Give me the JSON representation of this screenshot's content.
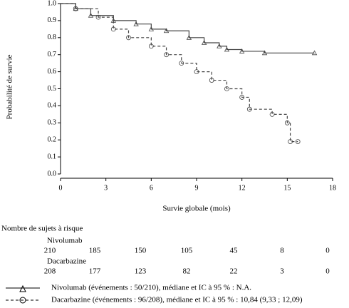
{
  "chart_data": {
    "type": "step",
    "x_label": "Survie globale (mois)",
    "y_label": "Probabilité de survie",
    "xlim": [
      0,
      18
    ],
    "xticks": [
      0,
      3,
      6,
      9,
      12,
      15,
      18
    ],
    "ylim": [
      0,
      1
    ],
    "yticks": [
      {
        "value": 0,
        "label": "0.0"
      },
      {
        "value": 0.1,
        "label": "0.1"
      },
      {
        "value": 0.2,
        "label": "0.2"
      },
      {
        "value": 0.3,
        "label": "0.3"
      },
      {
        "value": 0.4,
        "label": "0.4"
      },
      {
        "value": 0.5,
        "label": "0.5"
      },
      {
        "value": 0.6,
        "label": "0.6"
      },
      {
        "value": 0.7,
        "label": "0.7"
      },
      {
        "value": 0.8,
        "label": "0.8"
      },
      {
        "value": 0.9,
        "label": "0.9"
      },
      {
        "value": 1,
        "label": "1.0"
      }
    ],
    "series": [
      {
        "name": "Nivolumab (événements : 50/210), médiane et IC à 95 % : N.A.",
        "color": "#444444",
        "x": [
          0,
          1,
          2,
          3.5,
          5,
          6,
          7,
          8.5,
          9.5,
          10.5,
          11,
          12,
          13.5,
          16.8
        ],
        "values": [
          1,
          0.97,
          0.93,
          0.9,
          0.88,
          0.85,
          0.84,
          0.8,
          0.77,
          0.75,
          0.73,
          0.72,
          0.71,
          0.71
        ]
      },
      {
        "name": "Dacarbazine (événements : 96/208), médiane et IC à 95 % : 10,84 (9,33 ; 12,09)",
        "color": "#444444",
        "x": [
          0,
          1,
          2.5,
          3.5,
          4.5,
          6,
          7,
          8,
          9,
          10,
          11,
          12,
          12.5,
          14,
          15,
          15.2,
          15.7
        ],
        "values": [
          1,
          0.97,
          0.92,
          0.85,
          0.8,
          0.75,
          0.7,
          0.65,
          0.6,
          0.55,
          0.5,
          0.45,
          0.38,
          0.35,
          0.3,
          0.19,
          0.19
        ]
      }
    ],
    "risk_table": {
      "title": "Nombre de sujets à risque",
      "rows": [
        {
          "name": "Nivolumab",
          "values": [
            210,
            185,
            150,
            105,
            45,
            8,
            0
          ]
        },
        {
          "name": "Dacarbazine",
          "values": [
            208,
            177,
            123,
            82,
            22,
            3,
            0
          ]
        }
      ]
    }
  }
}
